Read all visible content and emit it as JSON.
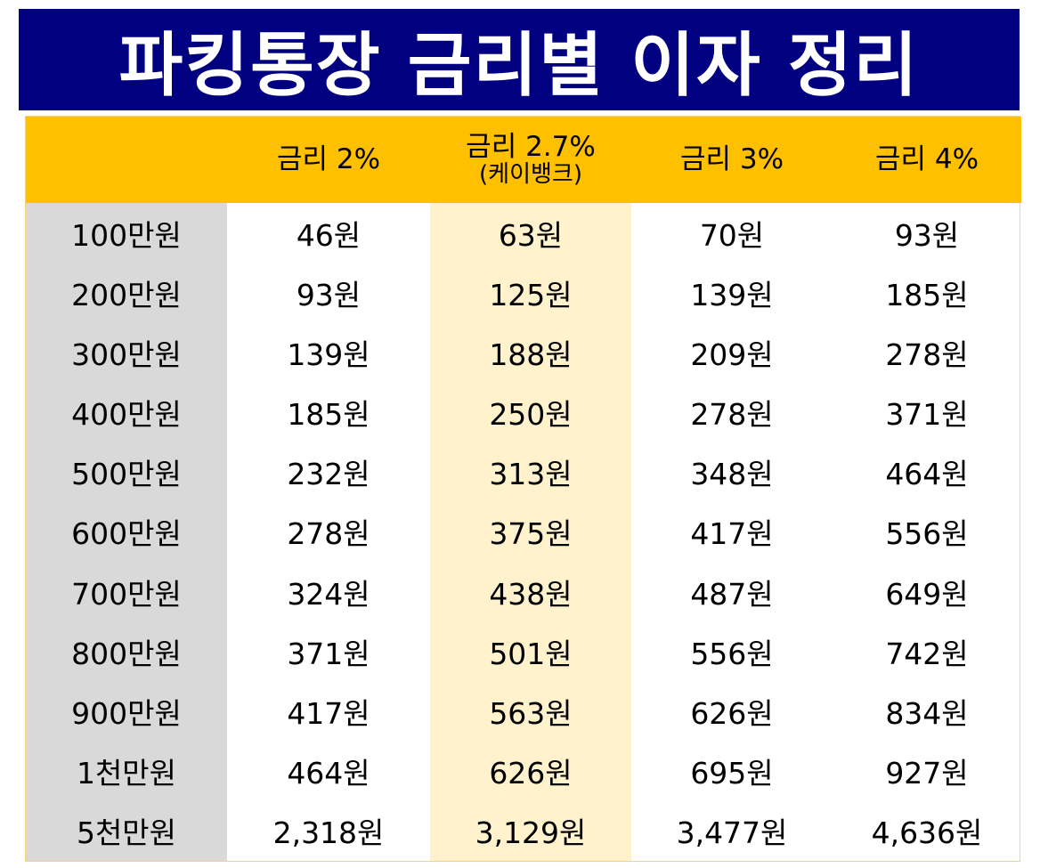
{
  "title": "파킹통장 금리별 이자 정리",
  "table": {
    "headers": [
      {
        "main": "",
        "sub": ""
      },
      {
        "main": "금리 2%",
        "sub": ""
      },
      {
        "main": "금리 2.7%",
        "sub": "(케이뱅크)"
      },
      {
        "main": "금리 3%",
        "sub": ""
      },
      {
        "main": "금리 4%",
        "sub": ""
      }
    ],
    "rows": [
      [
        "100만원",
        "46원",
        "63원",
        "70원",
        "93원"
      ],
      [
        "200만원",
        "93원",
        "125원",
        "139원",
        "185원"
      ],
      [
        "300만원",
        "139원",
        "188원",
        "209원",
        "278원"
      ],
      [
        "400만원",
        "185원",
        "250원",
        "278원",
        "371원"
      ],
      [
        "500만원",
        "232원",
        "313원",
        "348원",
        "464원"
      ],
      [
        "600만원",
        "278원",
        "375원",
        "417원",
        "556원"
      ],
      [
        "700만원",
        "324원",
        "438원",
        "487원",
        "649원"
      ],
      [
        "800만원",
        "371원",
        "501원",
        "556원",
        "742원"
      ],
      [
        "900만원",
        "417원",
        "563원",
        "626원",
        "834원"
      ],
      [
        "1천만원",
        "464원",
        "626원",
        "695원",
        "927원"
      ],
      [
        "5천만원",
        "2,318원",
        "3,129원",
        "3,477원",
        "4,636원"
      ]
    ]
  },
  "colors": {
    "banner": "#000080",
    "header": "#ffc000",
    "row_head": "#d9d9d9",
    "highlight_column": "#fff2cc"
  }
}
